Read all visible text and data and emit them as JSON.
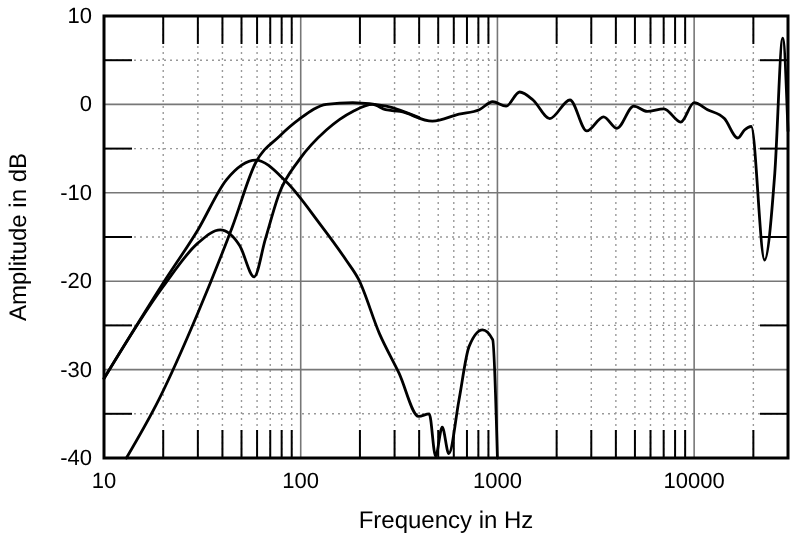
{
  "chart_data": {
    "type": "line",
    "xlabel": "Frequency in Hz",
    "ylabel": "Amplitude in dB",
    "log": "x",
    "grid": true,
    "xlim": [
      10,
      30000
    ],
    "ylim": [
      -40,
      10
    ],
    "xticks": [
      10,
      {
        "value": 20,
        "label": null
      },
      {
        "value": 30,
        "label": null
      },
      {
        "value": 40,
        "label": null
      },
      {
        "value": 50,
        "label": null
      },
      {
        "value": 60,
        "label": null
      },
      {
        "value": 70,
        "label": null
      },
      {
        "value": 80,
        "label": null
      },
      {
        "value": 90,
        "label": null
      },
      100,
      {
        "value": 200,
        "label": null
      },
      {
        "value": 300,
        "label": null
      },
      {
        "value": 400,
        "label": null
      },
      {
        "value": 500,
        "label": null
      },
      {
        "value": 600,
        "label": null
      },
      {
        "value": 700,
        "label": null
      },
      {
        "value": 800,
        "label": null
      },
      {
        "value": 900,
        "label": null
      },
      1000,
      {
        "value": 2000,
        "label": null
      },
      {
        "value": 3000,
        "label": null
      },
      {
        "value": 4000,
        "label": null
      },
      {
        "value": 5000,
        "label": null
      },
      {
        "value": 6000,
        "label": null
      },
      {
        "value": 7000,
        "label": null
      },
      {
        "value": 8000,
        "label": null
      },
      {
        "value": 9000,
        "label": null
      },
      10000,
      {
        "value": 20000,
        "label": null
      }
    ],
    "yticks": [
      -40,
      {
        "value": -35,
        "label": null
      },
      -30,
      {
        "value": -25,
        "label": null
      },
      -20,
      {
        "value": -15,
        "label": null
      },
      -10,
      {
        "value": -5,
        "label": null
      },
      0,
      {
        "value": 5,
        "label": null
      },
      10
    ],
    "series": [
      {
        "color": "#000000",
        "x": [
          13,
          19,
          30,
          45,
          59,
          78,
          98,
          135,
          184,
          272,
          400
        ],
        "values": [
          -40,
          -33.4,
          -23.6,
          -13.8,
          -6.6,
          -3.6,
          -1.7,
          0,
          0.2,
          -0.2,
          -1.5
        ]
      },
      {
        "color": "#000000",
        "x": [
          10,
          20,
          30,
          42,
          59,
          84,
          124,
          170,
          197,
          251,
          316,
          398,
          450,
          485,
          524,
          566,
          638,
          717,
          840,
          946,
          1000
        ],
        "values": [
          -31,
          -20.2,
          -14.2,
          -8.5,
          -6.3,
          -8.7,
          -13.4,
          -17.6,
          -19.8,
          -25.9,
          -30.4,
          -35.3,
          -35,
          -39.8,
          -36.5,
          -39.5,
          -33.4,
          -27.4,
          -25.5,
          -26.6,
          -40
        ]
      },
      {
        "color": "#000000",
        "x": [
          10,
          20,
          30,
          39,
          49,
          58,
          66,
          78,
          98,
          135,
          184,
          232,
          270,
          320,
          467,
          638,
          809,
          946,
          1107,
          1297,
          1517,
          1846,
          2337,
          2846,
          3461,
          4053,
          4933,
          5770,
          7020,
          8550,
          10000,
          11700,
          14250,
          16670,
          18030,
          19500,
          22800,
          25700,
          28200,
          30000
        ],
        "values": [
          -31,
          -20.6,
          -15.7,
          -14.2,
          -16,
          -19.5,
          -15.3,
          -10,
          -6.3,
          -2.9,
          -0.8,
          0,
          -0.6,
          -0.8,
          -1.9,
          -1.1,
          -0.6,
          0.3,
          -0.2,
          1.4,
          0.5,
          -1.6,
          0.5,
          -3,
          -1.4,
          -2.7,
          -0.2,
          -0.8,
          -0.5,
          -2,
          0.2,
          -0.6,
          -1.6,
          -3.8,
          -2.9,
          -2.5,
          -17.6,
          -7.8,
          7.5,
          -3
        ]
      }
    ]
  }
}
